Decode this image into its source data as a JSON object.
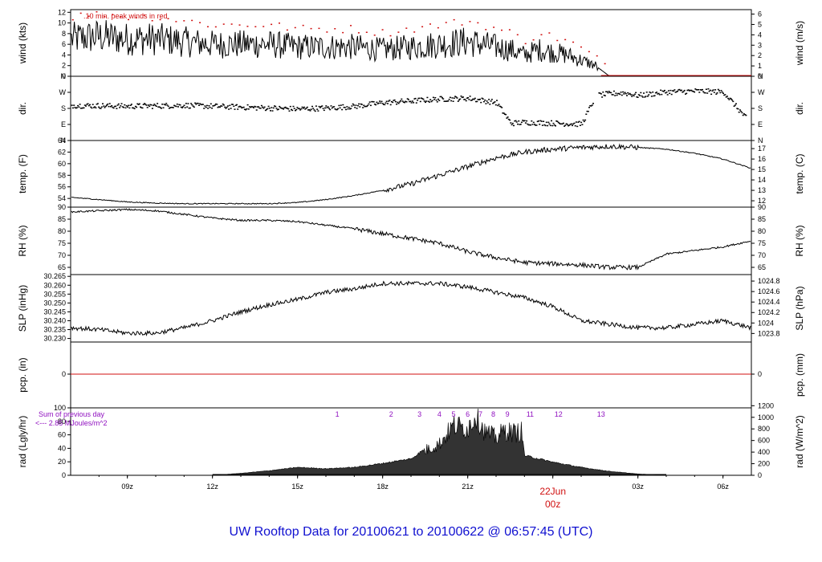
{
  "title": "UW Rooftop Data for 20100621  to  20100622 @ 06:57:45  (UTC)",
  "day_marker": {
    "date": "22Jun",
    "time": "00z"
  },
  "x_ticks": [
    "09z",
    "12z",
    "15z",
    "18z",
    "21z",
    "00z",
    "03z",
    "06z"
  ],
  "colors": {
    "title": "#1010d0",
    "red": "#d01010",
    "purple": "#9010c0",
    "line": "#000000"
  },
  "chart_data": [
    {
      "type": "line",
      "panel": "wind",
      "ylabel_left": "wind (kts)",
      "ylabel_right": "wind (m/s)",
      "annotation": "10 min. peak winds in red",
      "yticks_left": [
        "0",
        "2",
        "4",
        "6",
        "8",
        "10",
        "12"
      ],
      "yticks_right": [
        "0",
        "1",
        "2",
        "3",
        "4",
        "5",
        "6"
      ],
      "ylim": [
        0,
        12.5
      ],
      "series": [
        {
          "x": [
            7,
            8,
            9,
            10,
            11,
            12,
            13,
            14,
            15,
            16,
            17,
            18,
            19,
            20,
            21,
            22,
            22.5,
            23,
            23.5,
            24,
            24.5,
            25,
            25.5,
            26,
            26.5,
            27,
            28,
            29,
            30,
            31
          ],
          "values": [
            7,
            7.5,
            7,
            7,
            6.5,
            6,
            6,
            6,
            5.5,
            5.5,
            5.5,
            5,
            5.5,
            6,
            6.5,
            5.5,
            5,
            4,
            5,
            4.5,
            4,
            3,
            2,
            0,
            0,
            0,
            0,
            0,
            0,
            0
          ]
        }
      ]
    },
    {
      "type": "scatter",
      "panel": "dir",
      "ylabel_left": "dir.",
      "ylabel_right": "dir.",
      "yticks_left": [
        "N",
        "E",
        "S",
        "W",
        "N"
      ],
      "yticks_right": [
        "N",
        "E",
        "S",
        "W",
        "N"
      ],
      "series": [
        {
          "x": [
            7,
            9,
            11,
            13,
            15,
            16,
            17,
            18,
            19,
            20,
            21,
            22,
            22.5,
            23,
            24,
            25,
            25.5,
            26,
            26.5,
            27,
            28,
            29,
            30,
            31
          ],
          "values": [
            200,
            195,
            200,
            190,
            180,
            185,
            195,
            215,
            225,
            235,
            240,
            215,
            100,
            105,
            100,
            95,
            255,
            265,
            270,
            255,
            275,
            280,
            275,
            90
          ]
        }
      ]
    },
    {
      "type": "line",
      "panel": "temp",
      "ylabel_left": "temp. (F)",
      "ylabel_right": "temp. (C)",
      "yticks_left": [
        "54",
        "56",
        "58",
        "60",
        "62",
        "64"
      ],
      "yticks_right": [
        "12",
        "13",
        "14",
        "15",
        "16",
        "17"
      ],
      "ylim": [
        52.5,
        64
      ],
      "series": [
        {
          "x": [
            7,
            8,
            9,
            10,
            11,
            12,
            13,
            14,
            15,
            16,
            17,
            18,
            19,
            20,
            21,
            22,
            23,
            24,
            25,
            26,
            27,
            28,
            29,
            30,
            31
          ],
          "values": [
            54.2,
            53.8,
            53.4,
            53.2,
            53.1,
            53.1,
            53.1,
            53.1,
            53.3,
            53.8,
            54.5,
            55.4,
            56.5,
            58,
            59.5,
            61,
            62,
            62.5,
            62.8,
            63,
            62.8,
            62.5,
            61.8,
            60.8,
            59.2
          ]
        }
      ]
    },
    {
      "type": "line",
      "panel": "rh",
      "ylabel_left": "RH (%)",
      "ylabel_right": "RH (%)",
      "yticks_left": [
        "65",
        "70",
        "75",
        "80",
        "85",
        "90"
      ],
      "yticks_right": [
        "65",
        "70",
        "75",
        "80",
        "85",
        "90"
      ],
      "ylim": [
        62,
        90
      ],
      "series": [
        {
          "x": [
            7,
            8,
            9,
            10,
            11,
            12,
            13,
            14,
            15,
            16,
            17,
            18,
            19,
            20,
            21,
            22,
            23,
            24,
            25,
            26,
            27,
            28,
            29,
            30,
            31
          ],
          "values": [
            88,
            88.5,
            89,
            88.5,
            87,
            85.5,
            84.5,
            84.5,
            84,
            82.5,
            81,
            79,
            77,
            75,
            71.5,
            69,
            67,
            66.5,
            66,
            65,
            65,
            70.5,
            72,
            73.5,
            76
          ]
        }
      ]
    },
    {
      "type": "line",
      "panel": "slp",
      "ylabel_left": "SLP (inHg)",
      "ylabel_right": "SLP (hPa)",
      "yticks_left": [
        "30.230",
        "30.235",
        "30.240",
        "30.245",
        "30.250",
        "30.255",
        "30.260",
        "30.265"
      ],
      "yticks_right": [
        "1023.8",
        "1024",
        "1024.2",
        "1024.4",
        "1024.6",
        "1024.8"
      ],
      "ylim": [
        30.228,
        30.266
      ],
      "series": [
        {
          "x": [
            7,
            8,
            9,
            10,
            11,
            12,
            13,
            14,
            15,
            16,
            17,
            18,
            19,
            20,
            21,
            22,
            23,
            24,
            25,
            26,
            27,
            28,
            29,
            30,
            31
          ],
          "values": [
            30.236,
            30.235,
            30.233,
            30.233,
            30.236,
            30.24,
            30.245,
            30.249,
            30.252,
            30.256,
            30.258,
            30.261,
            30.261,
            30.261,
            30.259,
            30.256,
            30.253,
            30.248,
            30.24,
            30.238,
            30.236,
            30.236,
            30.238,
            30.24,
            30.236
          ]
        }
      ]
    },
    {
      "type": "line",
      "panel": "pcp",
      "ylabel_left": "pcp. (in)",
      "ylabel_right": "pcp. (mm)",
      "yticks_left": [
        "0"
      ],
      "yticks_right": [
        "0"
      ],
      "series": [
        {
          "x": [
            7,
            31
          ],
          "values": [
            0,
            0
          ]
        }
      ]
    },
    {
      "type": "area",
      "panel": "rad",
      "ylabel_left": "rad (Lgly/hr)",
      "ylabel_right": "rad (W/m^2)",
      "annotation_line1": "Sum of previous day",
      "annotation_line2": "<--- 2.85 MJoules/m^2",
      "yticks_left": [
        "0",
        "20",
        "40",
        "60",
        "80",
        "100"
      ],
      "yticks_right": [
        "0",
        "200",
        "400",
        "600",
        "800",
        "1000",
        "1200"
      ],
      "ylim": [
        0,
        100
      ],
      "hour_labels": [
        "1",
        "2",
        "3",
        "4",
        "5",
        "6",
        "7",
        "8",
        "9",
        "11",
        "12",
        "13"
      ],
      "series": [
        {
          "x": [
            12,
            13,
            14,
            15,
            16,
            17,
            18,
            19,
            19.5,
            20,
            20.5,
            21,
            21.3,
            21.6,
            22,
            22.3,
            22.6,
            22.9,
            23,
            23.5,
            24,
            25,
            26,
            27,
            28
          ],
          "values": [
            0,
            3,
            7,
            12,
            10,
            12,
            18,
            25,
            40,
            50,
            80,
            75,
            98,
            70,
            60,
            72,
            68,
            70,
            30,
            25,
            20,
            12,
            6,
            2,
            0
          ]
        }
      ]
    }
  ]
}
